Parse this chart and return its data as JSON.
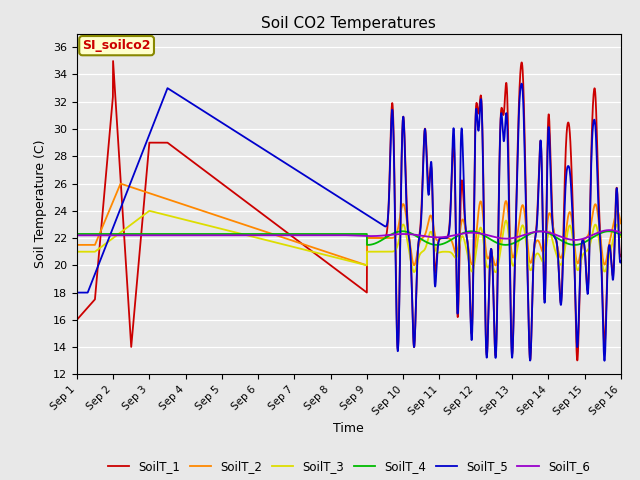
{
  "title": "Soil CO2 Temperatures",
  "xlabel": "Time",
  "ylabel": "Soil Temperature (C)",
  "ylim": [
    12,
    37
  ],
  "xlim": [
    0,
    15
  ],
  "annotation_text": "SI_soilco2",
  "annotation_color": "#cc0000",
  "annotation_bg": "#ffffcc",
  "bg_color": "#e8e8e8",
  "plot_bg": "#e8e8e8",
  "legend_labels": [
    "SoilT_1",
    "SoilT_2",
    "SoilT_3",
    "SoilT_4",
    "SoilT_5",
    "SoilT_6"
  ],
  "line_colors": [
    "#cc0000",
    "#ff8800",
    "#dddd00",
    "#00bb00",
    "#0000cc",
    "#9900cc"
  ],
  "xtick_labels": [
    "Sep 1",
    "Sep 2",
    "Sep 3",
    "Sep 4",
    "Sep 5",
    "Sep 6",
    "Sep 7",
    "Sep 8",
    "Sep 9",
    "Sep 10",
    "Sep 11",
    "Sep 12",
    "Sep 13",
    "Sep 14",
    "Sep 15",
    "Sep 16"
  ],
  "xtick_positions": [
    0,
    1,
    2,
    3,
    4,
    5,
    6,
    7,
    8,
    9,
    10,
    11,
    12,
    13,
    14,
    15
  ]
}
